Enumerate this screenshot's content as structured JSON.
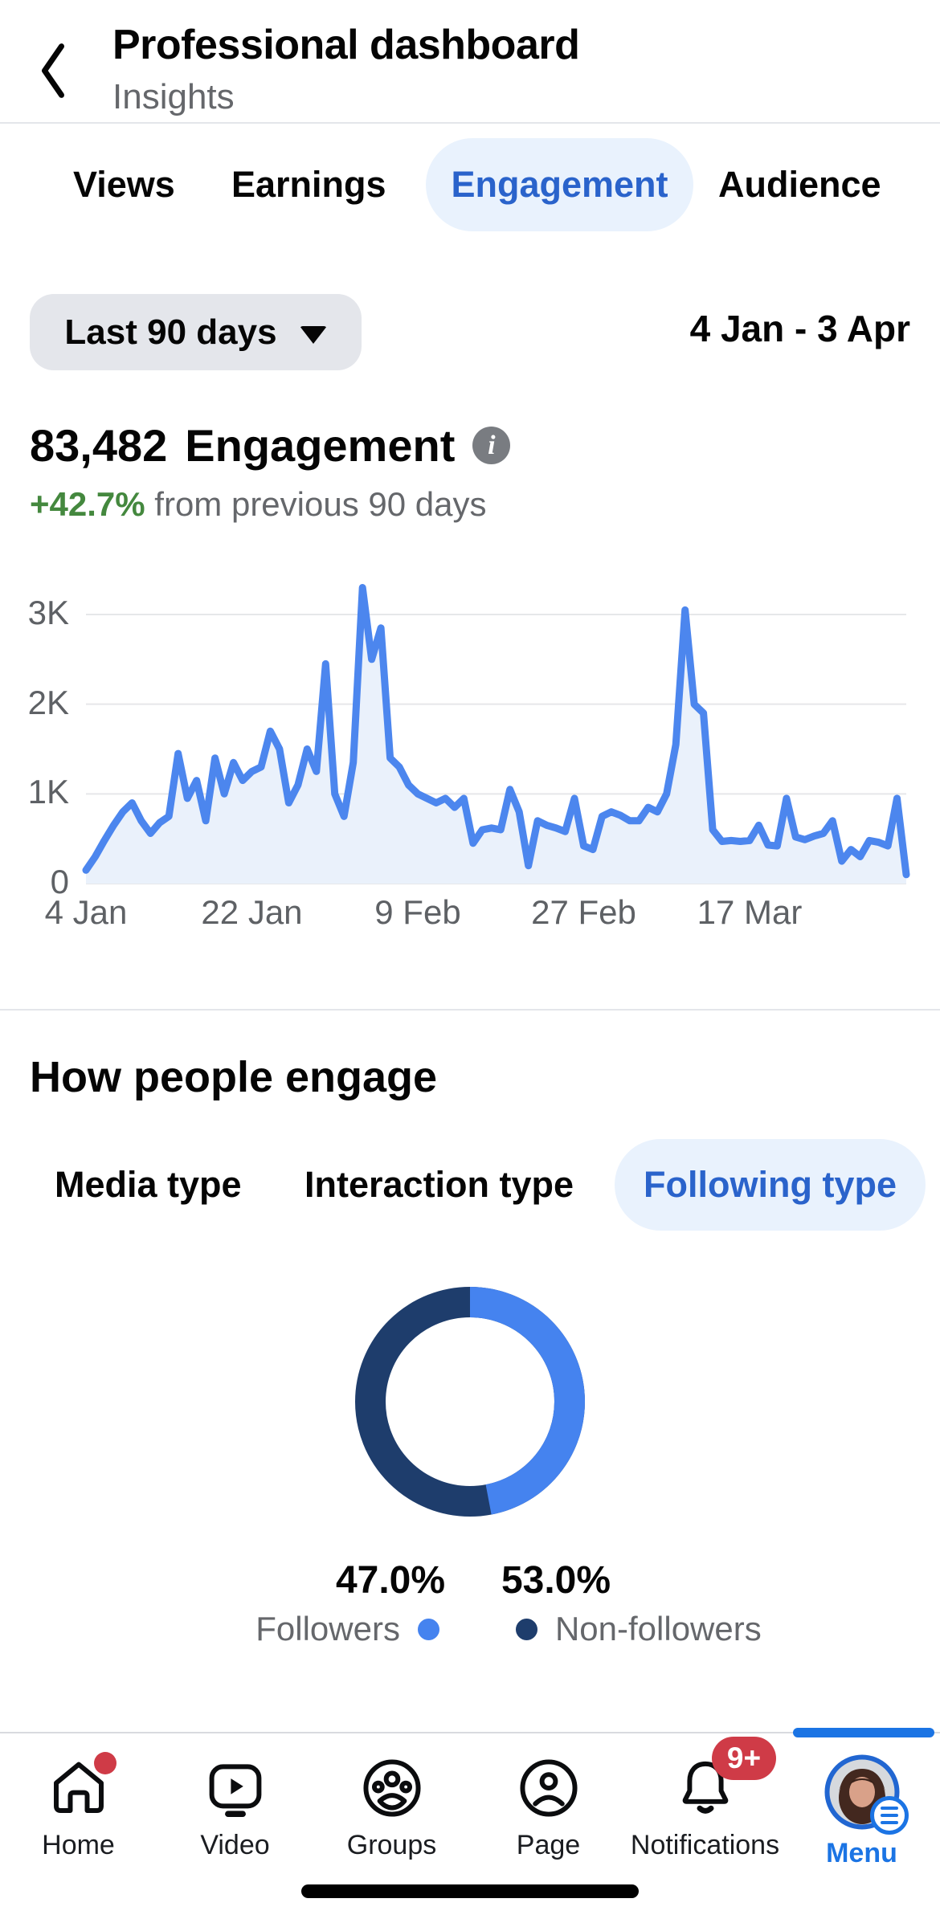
{
  "header": {
    "title": "Professional dashboard",
    "subtitle": "Insights"
  },
  "top_tabs": [
    {
      "label": "Views",
      "active": false
    },
    {
      "label": "Earnings",
      "active": false
    },
    {
      "label": "Engagement",
      "active": true
    },
    {
      "label": "Audience",
      "active": false
    }
  ],
  "controls": {
    "range_selector": "Last 90 days",
    "date_range": "4 Jan - 3 Apr"
  },
  "summary": {
    "value": "83,482",
    "metric": "Engagement",
    "change": "+42.7%",
    "change_context": "from previous 90 days",
    "change_color": "#44883E"
  },
  "chart_data": [
    {
      "type": "area",
      "title": "Engagement per day, last 90 days",
      "x_start": "4 Jan",
      "x_end": "3 Apr",
      "x_ticks": [
        {
          "label": "4 Jan",
          "day": 0
        },
        {
          "label": "22 Jan",
          "day": 18
        },
        {
          "label": "9 Feb",
          "day": 36
        },
        {
          "label": "27 Feb",
          "day": 54
        },
        {
          "label": "17 Mar",
          "day": 72
        }
      ],
      "y_ticks": [
        {
          "label": "0",
          "value": 0
        },
        {
          "label": "1K",
          "value": 1000
        },
        {
          "label": "2K",
          "value": 2000
        },
        {
          "label": "3K",
          "value": 3000
        }
      ],
      "ylim": [
        0,
        3350
      ],
      "grid": true,
      "legend_position": "none",
      "line_color": "#4C86EE",
      "fill_color": "#EAF1FB",
      "values": [
        150,
        300,
        480,
        650,
        800,
        900,
        700,
        560,
        680,
        750,
        1450,
        950,
        1150,
        700,
        1400,
        1000,
        1350,
        1150,
        1250,
        1300,
        1700,
        1500,
        900,
        1100,
        1500,
        1250,
        2450,
        1000,
        750,
        1350,
        3300,
        2500,
        2850,
        1400,
        1300,
        1100,
        1000,
        950,
        900,
        950,
        850,
        950,
        450,
        600,
        620,
        600,
        1050,
        800,
        200,
        700,
        650,
        620,
        580,
        950,
        420,
        380,
        750,
        800,
        760,
        700,
        700,
        850,
        800,
        1000,
        1550,
        3050,
        2000,
        1900,
        600,
        470,
        480,
        470,
        480,
        650,
        430,
        420,
        950,
        520,
        490,
        530,
        560,
        700,
        250,
        380,
        300,
        480,
        460,
        420,
        950,
        100
      ]
    },
    {
      "type": "donut",
      "title": "Engagement by following type",
      "legend_position": "bottom",
      "slices": [
        {
          "label": "Followers",
          "value": 47.0,
          "display": "47.0%",
          "color": "#4583EF"
        },
        {
          "label": "Non-followers",
          "value": 53.0,
          "display": "53.0%",
          "color": "#1E3D6C"
        }
      ]
    }
  ],
  "engage_section": {
    "title": "How people engage",
    "tabs": [
      {
        "label": "Media type",
        "active": false
      },
      {
        "label": "Interaction type",
        "active": false
      },
      {
        "label": "Following type",
        "active": true
      }
    ]
  },
  "bottom_nav": {
    "items": [
      {
        "label": "Home",
        "icon": "home-icon",
        "badge": "dot",
        "active": false
      },
      {
        "label": "Video",
        "icon": "video-icon",
        "active": false
      },
      {
        "label": "Groups",
        "icon": "groups-icon",
        "active": false
      },
      {
        "label": "Page",
        "icon": "page-icon",
        "active": false
      },
      {
        "label": "Notifications",
        "icon": "bell-icon",
        "badge_count": "9+",
        "active": false
      },
      {
        "label": "Menu",
        "icon": "avatar",
        "active": true
      }
    ]
  },
  "colors": {
    "accent_tab_blue": "#2A63CB",
    "tab_pill_bg": "#E9F2FD",
    "nav_blue": "#1B74E4",
    "badge_red": "#CF3B47",
    "positive_green": "#44883E",
    "secondary_text": "#65676B"
  }
}
